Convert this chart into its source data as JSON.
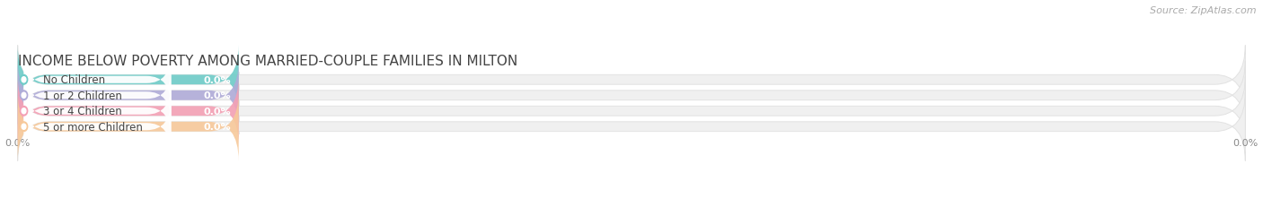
{
  "title": "INCOME BELOW POVERTY AMONG MARRIED-COUPLE FAMILIES IN MILTON",
  "source": "Source: ZipAtlas.com",
  "categories": [
    "No Children",
    "1 or 2 Children",
    "3 or 4 Children",
    "5 or more Children"
  ],
  "values": [
    0.0,
    0.0,
    0.0,
    0.0
  ],
  "bar_colors": [
    "#6eccc8",
    "#b0acd8",
    "#f4a0b5",
    "#f7c99a"
  ],
  "bg_color": "#ffffff",
  "bar_bg_color": "#f0f0f0",
  "bar_bg_edge_color": "#e2e2e2",
  "title_fontsize": 11,
  "label_fontsize": 8.5,
  "value_fontsize": 8,
  "source_fontsize": 8,
  "tick_fontsize": 8
}
